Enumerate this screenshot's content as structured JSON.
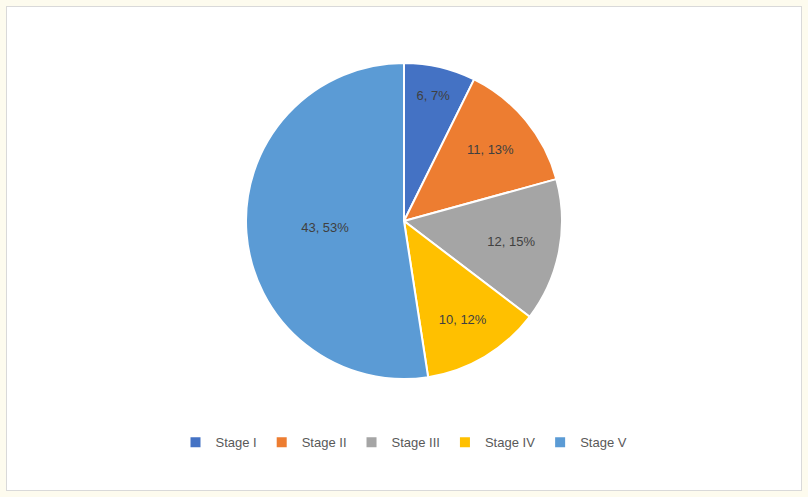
{
  "chart_data": {
    "type": "pie",
    "categories": [
      "Stage I",
      "Stage II",
      "Stage III",
      "Stage IV",
      "Stage V"
    ],
    "values": [
      6,
      11,
      12,
      10,
      43
    ],
    "value_labels": [
      "6, 7%",
      "11, 13%",
      "12, 15%",
      "10, 12%",
      "43, 53%"
    ],
    "colors": [
      "#4472c4",
      "#ed7d31",
      "#a5a5a5",
      "#ffc000",
      "#5b9bd5"
    ],
    "data_labels": true,
    "legend": "bottom"
  }
}
